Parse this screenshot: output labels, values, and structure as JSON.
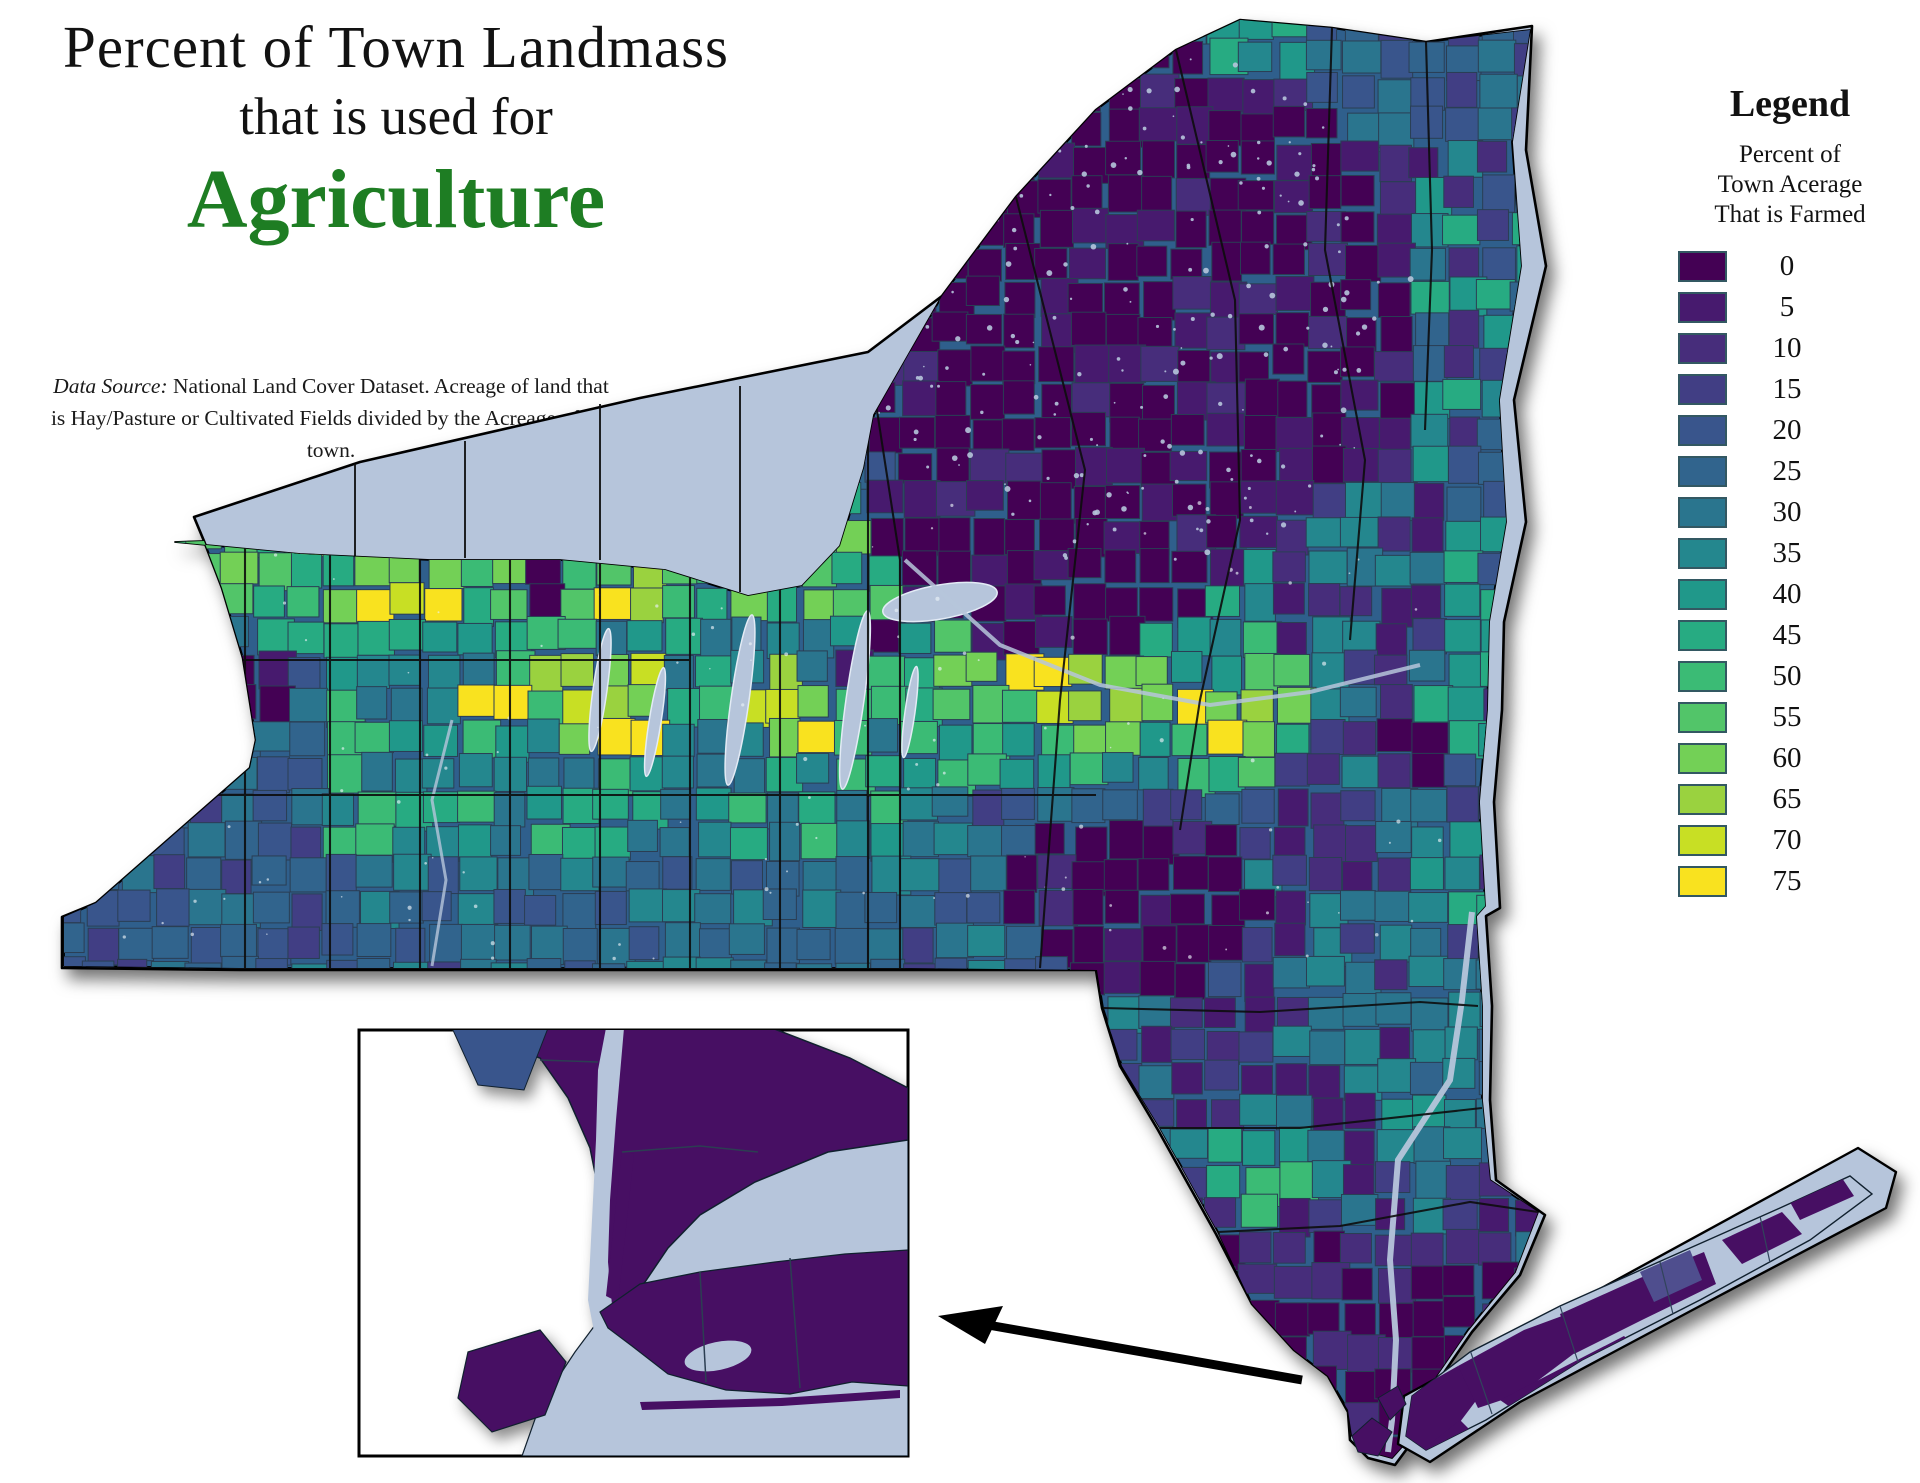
{
  "title": {
    "line1": "Percent of Town Landmass",
    "line2": "that is used for",
    "line3": "Agriculture",
    "accent_color": "#1e7d23"
  },
  "data_source": {
    "label": "Data Source:",
    "text": " National Land Cover Dataset. Acreage of land that is Hay/Pasture or Cultivated Fields divided by the Acreage of the town."
  },
  "legend": {
    "title": "Legend",
    "subtitle_lines": [
      "Percent of",
      "Town Acerage",
      "That is Farmed"
    ],
    "entries": [
      {
        "value": "0",
        "color": "#440154"
      },
      {
        "value": "5",
        "color": "#471a6e"
      },
      {
        "value": "10",
        "color": "#472d7b"
      },
      {
        "value": "15",
        "color": "#413e84"
      },
      {
        "value": "20",
        "color": "#39558c"
      },
      {
        "value": "25",
        "color": "#31648d"
      },
      {
        "value": "30",
        "color": "#2a758e"
      },
      {
        "value": "35",
        "color": "#24878e"
      },
      {
        "value": "40",
        "color": "#20988a"
      },
      {
        "value": "45",
        "color": "#27ab82"
      },
      {
        "value": "50",
        "color": "#3bbb75"
      },
      {
        "value": "55",
        "color": "#52c569"
      },
      {
        "value": "60",
        "color": "#73d056"
      },
      {
        "value": "65",
        "color": "#9ad23f"
      },
      {
        "value": "70",
        "color": "#c8df24"
      },
      {
        "value": "75",
        "color": "#f9e21f"
      }
    ]
  },
  "map": {
    "water_color": "#b6c5db",
    "land_outline_color": "#000000",
    "town_border_color": "#2a3e54",
    "county_border_color": "#0d0d0d",
    "no_data_purple": "#470f63",
    "lavender_town": "#4f4e8e",
    "inset_blue": "#39558c",
    "arrow_color": "#000000",
    "inset_border_color": "#000000"
  }
}
